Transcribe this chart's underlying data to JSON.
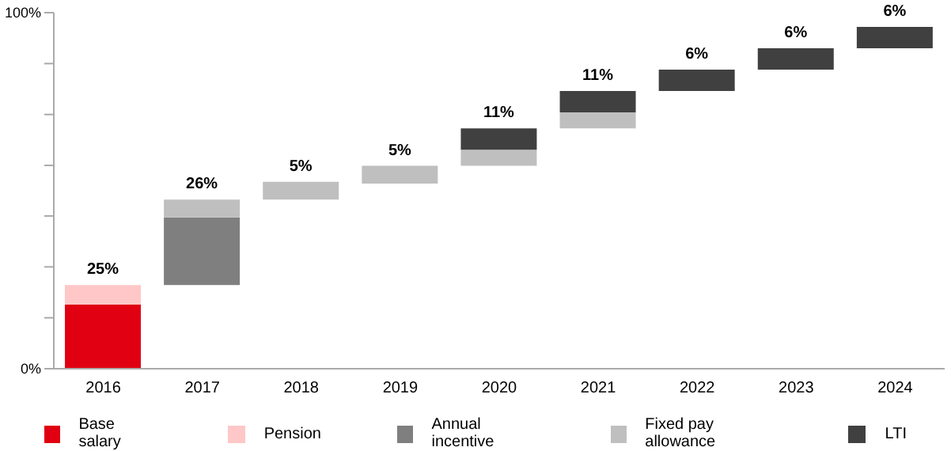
{
  "chart_data": {
    "type": "bar",
    "categories": [
      "2016",
      "2017",
      "2018",
      "2019",
      "2020",
      "2021",
      "2022",
      "2023",
      "2024"
    ],
    "series": [
      {
        "name": "Base salary",
        "color": "#e00012",
        "values": [
          18,
          null,
          null,
          null,
          null,
          null,
          null,
          null,
          null
        ],
        "base": [
          0,
          null,
          null,
          null,
          null,
          null,
          null,
          null,
          null
        ]
      },
      {
        "name": "Pension",
        "color": "#ffc7c7",
        "values": [
          5.5,
          null,
          null,
          null,
          null,
          null,
          null,
          null,
          null
        ],
        "base": [
          18,
          null,
          null,
          null,
          null,
          null,
          null,
          null,
          null
        ]
      },
      {
        "name": "Annual incentive",
        "color": "#7f7f7f",
        "values": [
          null,
          19,
          null,
          null,
          null,
          null,
          null,
          null,
          null
        ],
        "base": [
          null,
          23.5,
          null,
          null,
          null,
          null,
          null,
          null,
          null
        ]
      },
      {
        "name": "Fixed pay allowance",
        "color": "#bfbfbf",
        "values": [
          null,
          5,
          5,
          5,
          4.5,
          4.5,
          null,
          null,
          null
        ],
        "base": [
          null,
          42.5,
          47.5,
          52,
          57,
          67.5,
          null,
          null,
          null
        ]
      },
      {
        "name": "LTI",
        "color": "#404040",
        "values": [
          null,
          null,
          null,
          null,
          6,
          6,
          6,
          6,
          6
        ],
        "base": [
          null,
          null,
          null,
          null,
          61.5,
          72,
          78,
          84,
          90
        ]
      }
    ],
    "totals": [
      "25%",
      "26%",
      "5%",
      "5%",
      "11%",
      "11%",
      "6%",
      "6%",
      "6%"
    ],
    "ylim": [
      0,
      100
    ],
    "yticks": [
      {
        "value": 0,
        "label": "0%"
      },
      {
        "value": 14.3,
        "label": null
      },
      {
        "value": 28.6,
        "label": null
      },
      {
        "value": 42.9,
        "label": null
      },
      {
        "value": 57.1,
        "label": null
      },
      {
        "value": 71.4,
        "label": null
      },
      {
        "value": 85.7,
        "label": null
      },
      {
        "value": 100,
        "label": "100%"
      }
    ],
    "legend": "bottom",
    "grid": false
  }
}
